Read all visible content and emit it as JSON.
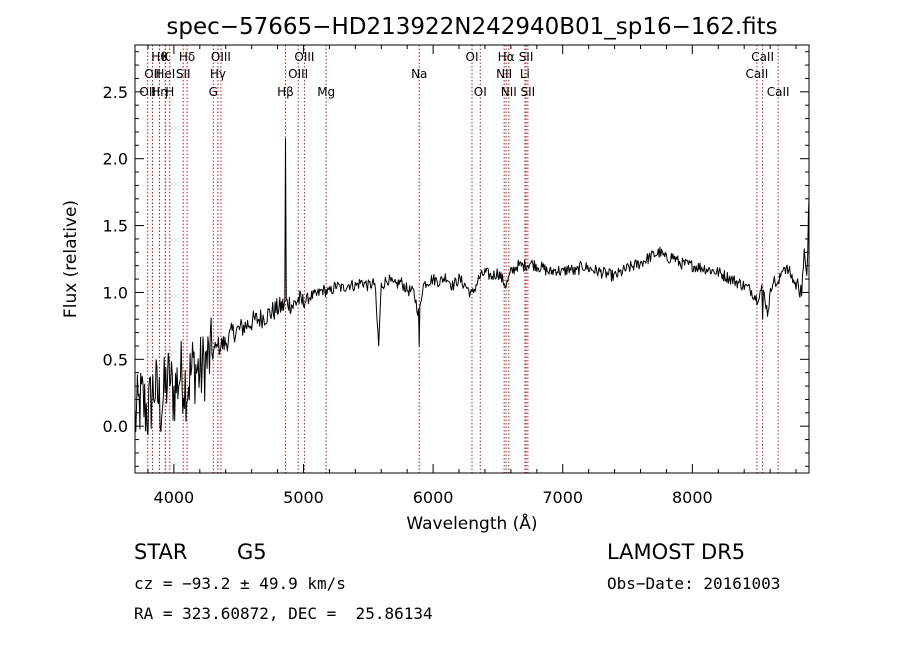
{
  "chart_data": {
    "type": "line",
    "title": "spec−57665−HD213922N242940B01_sp16−162.fits",
    "xlabel": "Wavelength (Å)",
    "ylabel": "Flux (relative)",
    "xlim": [
      3700,
      8900
    ],
    "ylim": [
      -0.35,
      2.85
    ],
    "x_ticks": [
      4000,
      5000,
      6000,
      7000,
      8000
    ],
    "x_tick_labels": [
      "4000",
      "5000",
      "6000",
      "7000",
      "8000"
    ],
    "y_ticks": [
      0.0,
      0.5,
      1.0,
      1.5,
      2.0,
      2.5
    ],
    "y_tick_labels": [
      "0.0",
      "0.5",
      "1.0",
      "1.5",
      "2.0",
      "2.5"
    ],
    "grid": false,
    "line_color": "#000000",
    "marker_line_color": "#b22222",
    "spectrum": {
      "x": [
        3700,
        3750,
        3800,
        3850,
        3900,
        3950,
        4000,
        4050,
        4100,
        4150,
        4200,
        4250,
        4300,
        4350,
        4400,
        4450,
        4500,
        4550,
        4600,
        4650,
        4700,
        4750,
        4800,
        4840,
        4861,
        4880,
        4920,
        4960,
        5000,
        5050,
        5100,
        5150,
        5200,
        5250,
        5300,
        5350,
        5400,
        5450,
        5500,
        5550,
        5580,
        5600,
        5650,
        5700,
        5750,
        5800,
        5850,
        5893,
        5920,
        5950,
        6000,
        6050,
        6100,
        6150,
        6200,
        6250,
        6300,
        6350,
        6400,
        6450,
        6500,
        6563,
        6600,
        6650,
        6700,
        6750,
        6800,
        6850,
        6900,
        6950,
        7000,
        7050,
        7100,
        7150,
        7200,
        7300,
        7400,
        7500,
        7600,
        7700,
        7750,
        7800,
        7850,
        7900,
        8000,
        8100,
        8200,
        8300,
        8400,
        8450,
        8498,
        8542,
        8580,
        8620,
        8662,
        8700,
        8750,
        8800,
        8830,
        8850,
        8870,
        8890,
        8900
      ],
      "y": [
        0.05,
        0.2,
        0.1,
        0.3,
        0.15,
        0.35,
        0.25,
        0.4,
        0.3,
        0.45,
        0.4,
        0.48,
        0.55,
        0.6,
        0.62,
        0.7,
        0.72,
        0.75,
        0.78,
        0.8,
        0.82,
        0.85,
        0.88,
        0.9,
        0.9,
        0.93,
        0.9,
        0.95,
        0.92,
        0.97,
        0.98,
        1.02,
        1.0,
        1.05,
        1.03,
        1.06,
        1.05,
        1.08,
        1.05,
        1.07,
        0.6,
        1.05,
        1.1,
        1.05,
        1.08,
        1.02,
        1.0,
        0.82,
        1.05,
        1.08,
        1.1,
        1.08,
        1.12,
        1.05,
        1.1,
        1.05,
        0.98,
        1.1,
        1.15,
        1.12,
        1.15,
        1.05,
        1.15,
        1.2,
        1.2,
        1.22,
        1.2,
        1.18,
        1.15,
        1.17,
        1.15,
        1.18,
        1.15,
        1.2,
        1.18,
        1.15,
        1.12,
        1.18,
        1.22,
        1.28,
        1.3,
        1.25,
        1.27,
        1.22,
        1.2,
        1.18,
        1.15,
        1.1,
        1.05,
        1.02,
        0.95,
        1.05,
        0.85,
        1.1,
        1.05,
        1.2,
        1.15,
        1.05,
        1.1,
        1.0,
        1.3,
        1.2,
        1.7
      ],
      "features": [
        {
          "x": 3933,
          "y": 0.25
        },
        {
          "x": 3968,
          "y": 0.3
        },
        {
          "x": 4340,
          "y": 0.6
        },
        {
          "x": 4861,
          "y": 2.15
        },
        {
          "x": 5580,
          "y": 0.6
        },
        {
          "x": 5893,
          "y": 0.6
        },
        {
          "x": 8542,
          "y": 0.8
        }
      ]
    },
    "line_markers": [
      {
        "x": 3798,
        "label": "OII",
        "row": 2
      },
      {
        "x": 3835,
        "label": "OII",
        "row": 1
      },
      {
        "x": 3889,
        "label": "Hθ",
        "row": 0
      },
      {
        "x": 3889,
        "label": "Hη",
        "row": 2
      },
      {
        "x": 3934,
        "label": "HeI",
        "row": 1
      },
      {
        "x": 3934,
        "label": "K",
        "row": 0
      },
      {
        "x": 3968,
        "label": "H",
        "row": 2
      },
      {
        "x": 4072,
        "label": "SII",
        "row": 1
      },
      {
        "x": 4102,
        "label": "Hδ",
        "row": 0
      },
      {
        "x": 4304,
        "label": "G",
        "row": 2
      },
      {
        "x": 4340,
        "label": "Hγ",
        "row": 1
      },
      {
        "x": 4363,
        "label": "OIII",
        "row": 0
      },
      {
        "x": 4861,
        "label": "Hβ",
        "row": 2
      },
      {
        "x": 4959,
        "label": "OIII",
        "row": 1
      },
      {
        "x": 5007,
        "label": "OIII",
        "row": 0
      },
      {
        "x": 5175,
        "label": "Mg",
        "row": 2
      },
      {
        "x": 5893,
        "label": "Na",
        "row": 1
      },
      {
        "x": 6300,
        "label": "OI",
        "row": 0
      },
      {
        "x": 6364,
        "label": "OI",
        "row": 2
      },
      {
        "x": 6548,
        "label": "NII",
        "row": 1
      },
      {
        "x": 6563,
        "label": "Hα",
        "row": 0
      },
      {
        "x": 6584,
        "label": "NII",
        "row": 2
      },
      {
        "x": 6708,
        "label": "Li",
        "row": 1
      },
      {
        "x": 6717,
        "label": "SII",
        "row": 0
      },
      {
        "x": 6731,
        "label": "SII",
        "row": 2
      },
      {
        "x": 8498,
        "label": "CaII",
        "row": 1
      },
      {
        "x": 8542,
        "label": "CaII",
        "row": 0
      },
      {
        "x": 8662,
        "label": "CaII",
        "row": 2
      }
    ]
  },
  "info": {
    "class_label": "STAR",
    "subclass_label": "G5",
    "survey_label": "LAMOST DR5",
    "cz_text": "cz = −93.2 ± 49.9 km/s",
    "obs_date_text": "Obs−Date: 20161003",
    "coords_text": "RA = 323.60872, DEC =  25.86134"
  }
}
